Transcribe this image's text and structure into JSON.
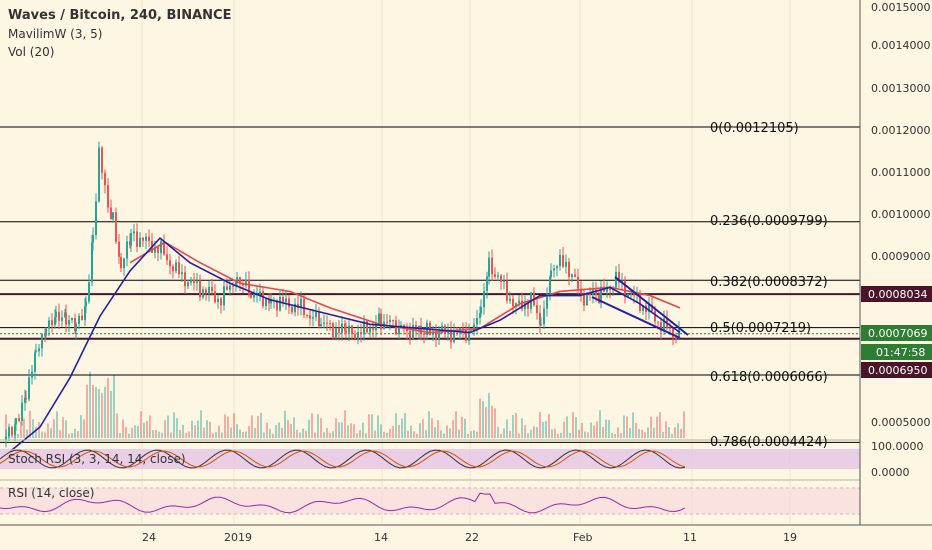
{
  "header": {
    "symbol": "Waves / Bitcoin, 240, BINANCE",
    "indicator1": "MavilimW (3, 5)",
    "indicator2": "Vol (20)"
  },
  "panels": {
    "stoch_label": "Stoch RSI (3, 3, 14, 14, close)",
    "rsi_label": "RSI (14, close)"
  },
  "colors": {
    "background": "#fdf6e3",
    "up_candle": "#26a69a",
    "down_candle": "#ef5350",
    "mavilim_line": "#1f22a8",
    "ma_line": "#e8474a",
    "fib_line": "#000000",
    "sr_line": "#4a1528",
    "stoch_band": "#e1bee7",
    "rsi_band": "#f8d7da",
    "price_tag": "#4a1528",
    "current_tag": "#2e7d32",
    "rsi_line": "#9c27b0"
  },
  "chart_data": {
    "type": "candlestick",
    "title": "Waves / Bitcoin, 240, BINANCE",
    "y_axis_ticks": [
      "0.0015000",
      "0.0014000",
      "0.0013000",
      "0.0012000",
      "0.0011000",
      "0.0010000",
      "0.0009000",
      "0.0005000"
    ],
    "x_axis_ticks": [
      "24",
      "2019",
      "14",
      "22",
      "Feb",
      "11",
      "19"
    ],
    "stoch_axis_ticks": [
      "100.0000",
      "0.0000"
    ],
    "fib_levels": [
      {
        "label": "0(0.0012105)",
        "price": 0.0012105
      },
      {
        "label": "0.236(0.0009799)",
        "price": 0.0009799
      },
      {
        "label": "0.382(0.0008372)",
        "price": 0.0008372
      },
      {
        "label": "0.5(0.0007219)",
        "price": 0.0007219
      },
      {
        "label": "0.618(0.0006066)",
        "price": 0.0006066
      },
      {
        "label": "0.786(0.0004424)",
        "price": 0.0004424
      }
    ],
    "support_resistance": [
      0.0008034,
      0.000695
    ],
    "price_tags": {
      "resistance": "0.0008034",
      "current_price": "0.0007069",
      "countdown": "01:47:58",
      "support": "0.0006950"
    },
    "wedge_pattern": "falling wedge, early February",
    "series": [
      {
        "name": "MavilimW (3, 5)"
      },
      {
        "name": "Vol (20)"
      },
      {
        "name": "Stoch RSI (3, 3, 14, 14, close)"
      },
      {
        "name": "RSI (14, close)"
      }
    ]
  }
}
